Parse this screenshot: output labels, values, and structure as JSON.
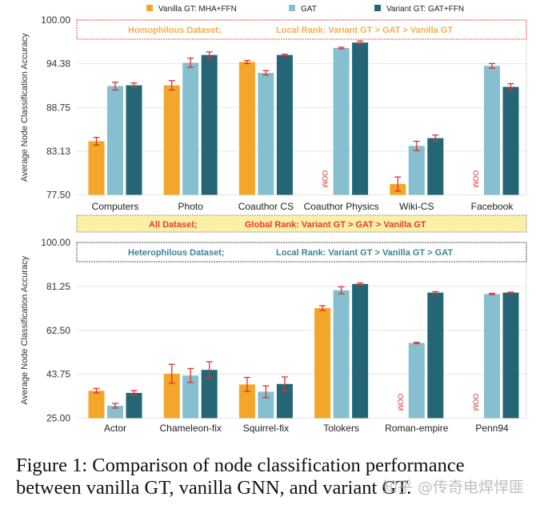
{
  "colors": {
    "vanilla": "#F4A62A",
    "gat": "#86BFCF",
    "variant": "#246676",
    "error": "#E0302A",
    "grid": "#e6e6e6"
  },
  "legend": [
    "Vanilla GT: MHA+FFN",
    "GAT",
    "Variant GT: GAT+FFN"
  ],
  "all_banner": {
    "left": "All Dataset;",
    "right": "Global Rank: Variant GT > GAT > Vanilla GT"
  },
  "caption": "Figure 1: Comparison of node classification performance between vanilla GT, vanilla GNN, and variant GT.",
  "watermark": "知乎 @传奇电焊悍匪",
  "chart_data": [
    {
      "type": "bar",
      "title": "",
      "banner": {
        "left": "Homophilous Dataset;",
        "right": "Local Rank: Variant GT > GAT > Vanilla GT"
      },
      "ylabel": "Average Node Classification Accuracy",
      "ylim": [
        77.5,
        100
      ],
      "yticks": [
        "77.50",
        "83.13",
        "88.75",
        "94.38",
        "100.00"
      ],
      "categories": [
        "Computers",
        "Photo",
        "Coauthor CS",
        "Coauthor Physics",
        "Wiki-CS",
        "Facebook"
      ],
      "oom_label": "OOM",
      "series": [
        {
          "name": "Vanilla GT: MHA+FFN",
          "values": [
            84.4,
            91.6,
            94.6,
            null,
            78.9,
            null
          ],
          "errors": [
            0.5,
            0.6,
            0.2,
            null,
            0.9,
            null
          ]
        },
        {
          "name": "GAT",
          "values": [
            91.5,
            94.5,
            93.2,
            96.4,
            83.8,
            94.1
          ],
          "errors": [
            0.5,
            0.6,
            0.3,
            0.1,
            0.6,
            0.3
          ]
        },
        {
          "name": "Variant GT: GAT+FFN",
          "values": [
            91.6,
            95.5,
            95.5,
            97.1,
            84.8,
            91.4
          ],
          "errors": [
            0.3,
            0.4,
            0.1,
            0.2,
            0.4,
            0.4
          ]
        }
      ]
    },
    {
      "type": "bar",
      "title": "",
      "banner": {
        "left": "Heterophilous Dataset;",
        "right": "Local Rank: Variant GT > Vanilla GT > GAT"
      },
      "ylabel": "Average Node Classification Accuracy",
      "ylim": [
        25,
        100
      ],
      "yticks": [
        "25.00",
        "43.75",
        "62.50",
        "81.25",
        "100.00"
      ],
      "categories": [
        "Actor",
        "Chameleon-fix",
        "Squirrel-fix",
        "Tolokers",
        "Roman-empire",
        "Penn94"
      ],
      "oom_label": "OOM",
      "series": [
        {
          "name": "Vanilla GT: MHA+FFN",
          "values": [
            36.7,
            44.0,
            39.4,
            72.0,
            null,
            null
          ],
          "errors": [
            1.0,
            4.0,
            3.0,
            1.0,
            null,
            null
          ]
        },
        {
          "name": "GAT",
          "values": [
            30.3,
            43.2,
            36.3,
            79.6,
            57.1,
            78.0
          ],
          "errors": [
            1.0,
            3.0,
            2.5,
            1.5,
            0.3,
            0.3
          ]
        },
        {
          "name": "Variant GT: GAT+FFN",
          "values": [
            35.8,
            45.6,
            39.6,
            82.3,
            78.6,
            78.6
          ],
          "errors": [
            1.0,
            3.5,
            3.0,
            0.4,
            0.4,
            0.2
          ]
        }
      ]
    }
  ]
}
